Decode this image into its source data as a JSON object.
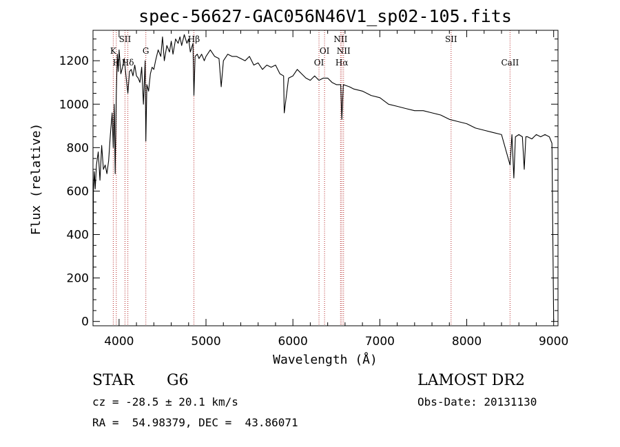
{
  "chart_data": {
    "type": "line",
    "title": "spec-56627-GAC056N46V1_sp02-105.fits",
    "xlabel": "Wavelength (Å)",
    "ylabel": "Flux (relative)",
    "xlim": [
      3700,
      9050
    ],
    "ylim": [
      -20,
      1340
    ],
    "xticks": [
      4000,
      5000,
      6000,
      7000,
      8000,
      9000
    ],
    "yticks": [
      0,
      200,
      400,
      600,
      800,
      1000,
      1200
    ],
    "series": [
      {
        "name": "flux",
        "x": [
          3700,
          3705,
          3715,
          3725,
          3740,
          3760,
          3780,
          3800,
          3820,
          3840,
          3860,
          3880,
          3900,
          3920,
          3933,
          3945,
          3955,
          3968,
          3980,
          3990,
          4000,
          4020,
          4040,
          4060,
          4080,
          4101,
          4120,
          4140,
          4160,
          4180,
          4200,
          4220,
          4240,
          4260,
          4280,
          4300,
          4308,
          4320,
          4340,
          4360,
          4380,
          4400,
          4420,
          4450,
          4480,
          4500,
          4520,
          4550,
          4580,
          4600,
          4620,
          4650,
          4680,
          4700,
          4720,
          4750,
          4780,
          4800,
          4820,
          4850,
          4861,
          4875,
          4900,
          4920,
          4950,
          4980,
          5000,
          5050,
          5100,
          5150,
          5175,
          5200,
          5250,
          5300,
          5350,
          5400,
          5450,
          5500,
          5550,
          5600,
          5650,
          5700,
          5750,
          5800,
          5850,
          5893,
          5900,
          5950,
          6000,
          6050,
          6100,
          6150,
          6200,
          6250,
          6300,
          6350,
          6400,
          6450,
          6500,
          6550,
          6563,
          6580,
          6650,
          6700,
          6800,
          6900,
          7000,
          7100,
          7200,
          7300,
          7400,
          7500,
          7600,
          7700,
          7800,
          7900,
          8000,
          8100,
          8200,
          8300,
          8400,
          8498,
          8520,
          8542,
          8560,
          8600,
          8640,
          8662,
          8680,
          8700,
          8750,
          8800,
          8850,
          8900,
          8950,
          8980,
          9000
        ],
        "y": [
          0,
          600,
          690,
          610,
          720,
          780,
          650,
          810,
          700,
          720,
          680,
          740,
          860,
          960,
          800,
          1000,
          680,
          1040,
          1230,
          1150,
          1250,
          1140,
          1170,
          1210,
          1130,
          1050,
          1150,
          1160,
          1130,
          1180,
          1130,
          1120,
          1100,
          1170,
          1000,
          1200,
          830,
          1090,
          1060,
          1140,
          1170,
          1160,
          1200,
          1250,
          1220,
          1310,
          1200,
          1270,
          1240,
          1290,
          1230,
          1300,
          1280,
          1310,
          1270,
          1320,
          1280,
          1300,
          1240,
          1280,
          1040,
          1220,
          1230,
          1210,
          1230,
          1200,
          1220,
          1250,
          1220,
          1210,
          1080,
          1200,
          1230,
          1220,
          1220,
          1210,
          1200,
          1220,
          1180,
          1190,
          1160,
          1180,
          1170,
          1180,
          1140,
          1130,
          960,
          1120,
          1130,
          1160,
          1140,
          1120,
          1110,
          1130,
          1110,
          1120,
          1120,
          1100,
          1090,
          1090,
          930,
          1090,
          1080,
          1070,
          1060,
          1040,
          1030,
          1000,
          990,
          980,
          970,
          970,
          960,
          950,
          930,
          920,
          910,
          890,
          880,
          870,
          860,
          720,
          860,
          660,
          850,
          860,
          850,
          700,
          850,
          850,
          840,
          860,
          850,
          860,
          850,
          820,
          0
        ]
      }
    ],
    "lines": [
      {
        "x": 3933,
        "label": "K",
        "row": 2
      },
      {
        "x": 3968,
        "label": "H",
        "row": 3
      },
      {
        "x": 4068,
        "label": "SII",
        "row": 1
      },
      {
        "x": 4101,
        "label": "Hδ",
        "row": 3
      },
      {
        "x": 4308,
        "label": "G",
        "row": 2
      },
      {
        "x": 4861,
        "label": "Hβ",
        "row": 1
      },
      {
        "x": 6300,
        "label": "OI",
        "row": 3
      },
      {
        "x": 6364,
        "label": "OI",
        "row": 2
      },
      {
        "x": 6548,
        "label": "NII",
        "row": 1
      },
      {
        "x": 6563,
        "label": "Hα",
        "row": 3
      },
      {
        "x": 6583,
        "label": "NII",
        "row": 2
      },
      {
        "x": 7820,
        "label": "SII",
        "row": 1
      },
      {
        "x": 8498,
        "label": "CaII",
        "row": 3
      }
    ]
  },
  "info": {
    "class_label": "STAR",
    "subclass": "G6",
    "survey": "LAMOST DR2",
    "cz_text": "cz = -28.5 ± 20.1 km/s",
    "obs_date": "Obs-Date: 20131130",
    "coords": "RA =  54.98379, DEC =  43.86071"
  },
  "colors": {
    "ink": "#000000",
    "line_marker": "#b22222"
  }
}
